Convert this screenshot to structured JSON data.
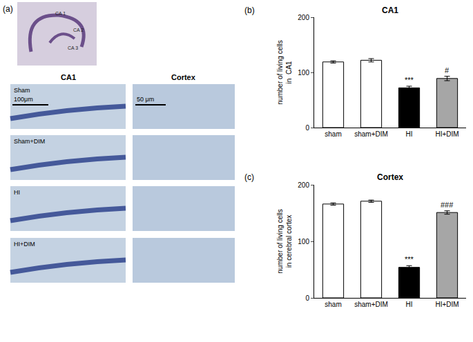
{
  "panel_a": {
    "label": "(a)",
    "overview_labels": [
      "CA 1",
      "CA 2",
      "CA 3"
    ],
    "columns": [
      "CA1",
      "Cortex"
    ],
    "rows": [
      "Sham",
      "Sham+DIM",
      "HI",
      "HI+DIM"
    ],
    "scale_bars": [
      "100μm",
      "50 μm"
    ]
  },
  "chart_data": [
    {
      "type": "bar",
      "panel_label": "(b)",
      "title": "CA1",
      "y_label": [
        "number of living cells",
        "in  CA1"
      ],
      "categories": [
        "sham",
        "sham+DIM",
        "HI",
        "HI+DIM"
      ],
      "values": [
        119,
        122,
        72,
        89
      ],
      "errors": [
        2,
        3,
        3,
        4
      ],
      "colors": [
        "#ffffff",
        "#ffffff",
        "#000000",
        "#a6a6a6"
      ],
      "annotations": [
        {
          "category": "HI",
          "text": "***"
        },
        {
          "category": "HI+DIM",
          "text": "#"
        }
      ],
      "ylim": [
        0,
        200
      ],
      "yticks": [
        0,
        100,
        200
      ],
      "grid": false
    },
    {
      "type": "bar",
      "panel_label": "(c)",
      "title": "Cortex",
      "y_label": [
        "number of living cells",
        "in cerebral cortex"
      ],
      "categories": [
        "sham",
        "sham+DIM",
        "HI",
        "HI+DIM"
      ],
      "values": [
        166,
        171,
        54,
        151
      ],
      "errors": [
        2,
        2,
        3,
        3
      ],
      "colors": [
        "#ffffff",
        "#ffffff",
        "#000000",
        "#a6a6a6"
      ],
      "annotations": [
        {
          "category": "HI",
          "text": "***"
        },
        {
          "category": "HI+DIM",
          "text": "###"
        }
      ],
      "ylim": [
        0,
        200
      ],
      "yticks": [
        0,
        100,
        200
      ],
      "grid": false
    }
  ]
}
